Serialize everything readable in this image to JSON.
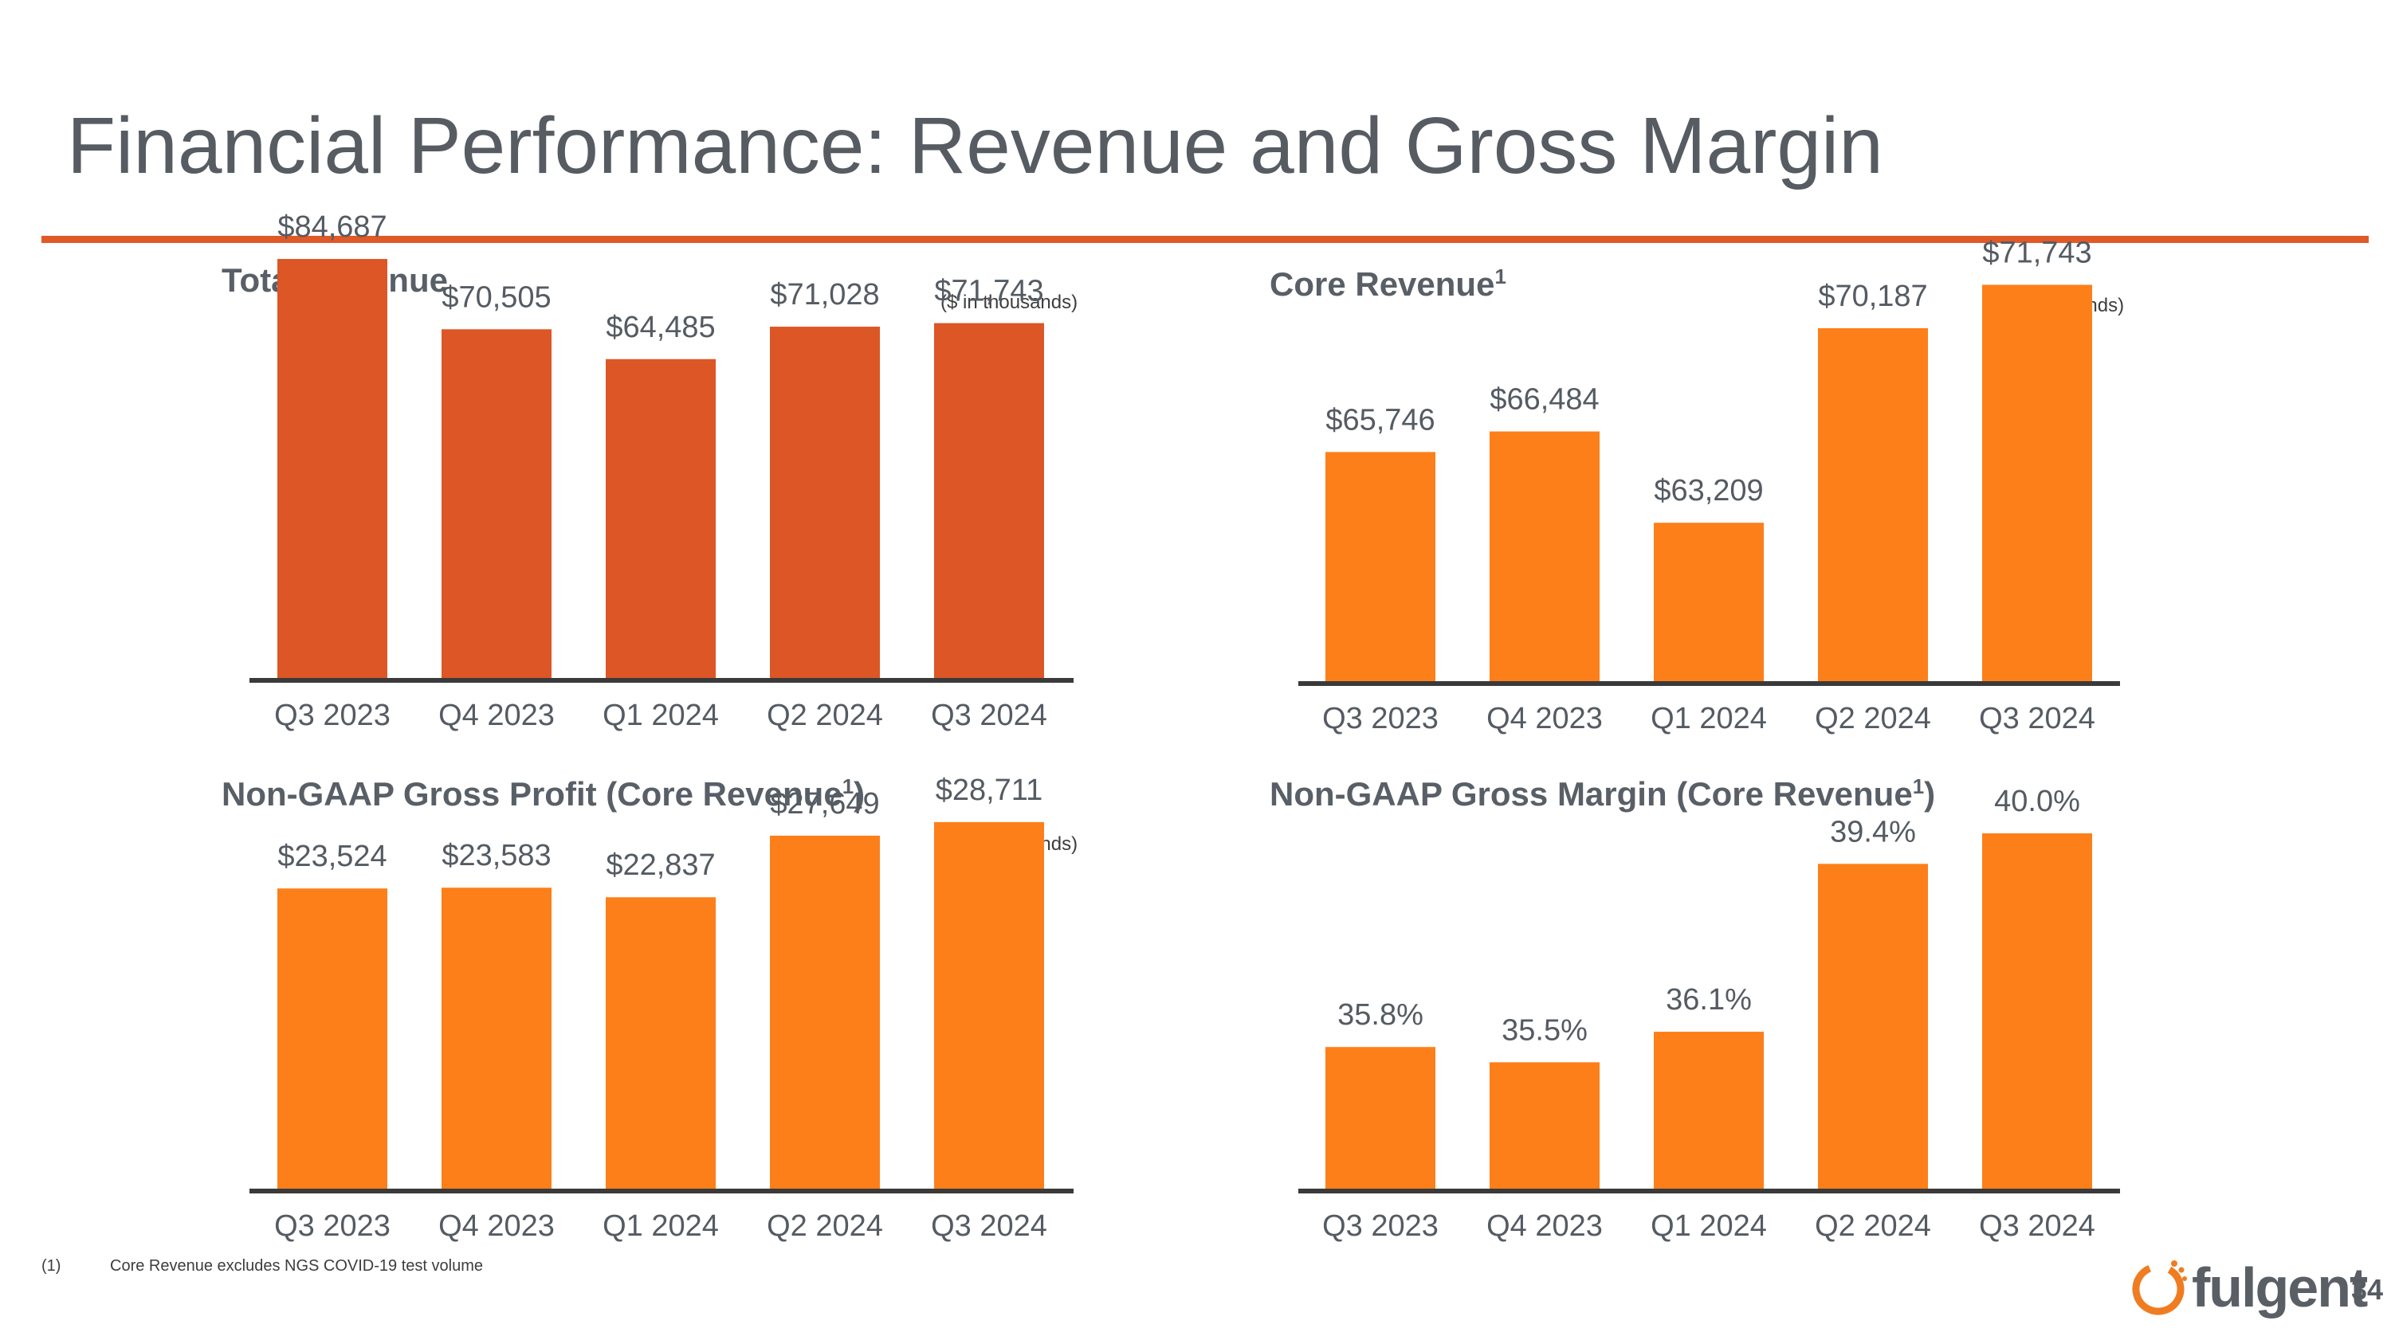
{
  "slide": {
    "title": "Financial Performance: Revenue and Gross Margin",
    "page_number": "34",
    "footnote_marker": "(1)",
    "footnote_text": "Core Revenue excludes NGS COVID-19 test volume",
    "logo_text": "fulgent"
  },
  "colors": {
    "accent_rule": "#e05a28",
    "total_revenue_bar": "#dd5626",
    "core_bar": "#fd7f19",
    "axis": "#3a3a3a",
    "text": "#555b63"
  },
  "panels": {
    "total_revenue": {
      "title": "Total Revenue",
      "superscript": "",
      "unit": "($ in thousands)"
    },
    "core_revenue": {
      "title": "Core Revenue",
      "superscript": "1",
      "unit": "($ in thousands)"
    },
    "gross_profit": {
      "title": "Non-GAAP Gross Profit (Core Revenue",
      "superscript": "1",
      "title_suffix": ")",
      "unit": "($ in thousands)"
    },
    "gross_margin": {
      "title": "Non-GAAP Gross Margin (Core Revenue",
      "superscript": "1",
      "title_suffix": ")",
      "unit": ""
    }
  },
  "chart_data": [
    {
      "id": "total_revenue",
      "type": "bar",
      "title": "Total Revenue",
      "categories": [
        "Q3 2023",
        "Q4 2023",
        "Q1 2024",
        "Q2 2024",
        "Q3 2024"
      ],
      "values": [
        84687,
        70505,
        64485,
        71028,
        71743
      ],
      "labels": [
        "$84,687",
        "$70,505",
        "$64,485",
        "$71,028",
        "$71,743"
      ],
      "ylabel": "($ in thousands)",
      "ylim": [
        0,
        90000
      ]
    },
    {
      "id": "core_revenue",
      "type": "bar",
      "title": "Core Revenue",
      "categories": [
        "Q3 2023",
        "Q4 2023",
        "Q1 2024",
        "Q2 2024",
        "Q3 2024"
      ],
      "values": [
        65746,
        66484,
        63209,
        70187,
        71743
      ],
      "labels": [
        "$65,746",
        "$66,484",
        "$63,209",
        "$70,187",
        "$71,743"
      ],
      "ylabel": "($ in thousands)",
      "ylim": [
        57500,
        73500
      ]
    },
    {
      "id": "gross_profit",
      "type": "bar",
      "title": "Non-GAAP Gross Profit (Core Revenue)",
      "categories": [
        "Q3 2023",
        "Q4 2023",
        "Q1 2024",
        "Q2 2024",
        "Q3 2024"
      ],
      "values": [
        23524,
        23583,
        22837,
        27649,
        28711
      ],
      "labels": [
        "$23,524",
        "$23,583",
        "$22,837",
        "$27,649",
        "$28,711"
      ],
      "ylabel": "($ in thousands)",
      "ylim": [
        0,
        33000
      ]
    },
    {
      "id": "gross_margin",
      "type": "bar",
      "title": "Non-GAAP Gross Margin (Core Revenue)",
      "categories": [
        "Q3 2023",
        "Q4 2023",
        "Q1 2024",
        "Q2 2024",
        "Q3 2024"
      ],
      "values": [
        35.8,
        35.5,
        36.1,
        39.4,
        40.0
      ],
      "labels": [
        "35.8%",
        "35.5%",
        "36.1%",
        "39.4%",
        "40.0%"
      ],
      "ylabel": "",
      "ylim": [
        33.0,
        41.3
      ]
    }
  ]
}
